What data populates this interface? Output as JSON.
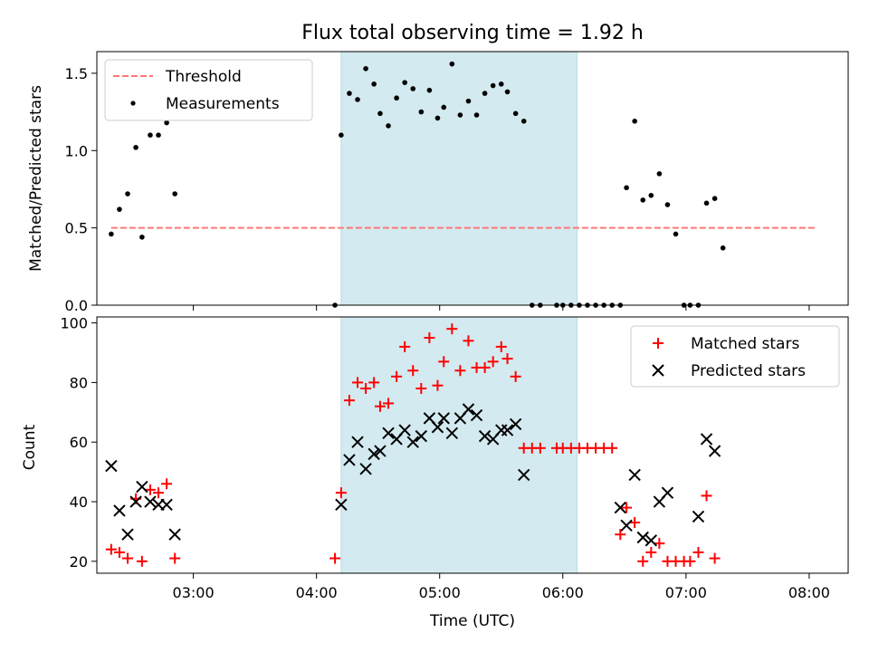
{
  "chart_data": [
    {
      "type": "scatter",
      "title": "Flux total observing time = 1.92 h",
      "ylabel": "Matched/Predicted stars",
      "xlabel": "",
      "xlim": [
        "02:13",
        "08:19"
      ],
      "ylim": [
        0,
        1.64
      ],
      "yticks": [
        0.0,
        0.5,
        1.0,
        1.5
      ],
      "ytick_labels": [
        "0.0",
        "0.5",
        "1.0",
        "1.5"
      ],
      "shaded_interval": [
        "04:12",
        "06:07"
      ],
      "shaded_color": "#d3eaf0",
      "legend": {
        "placement": "top-left",
        "entries": [
          "Threshold",
          "Measurements"
        ]
      },
      "threshold": {
        "name": "Threshold",
        "value": 0.5,
        "x_range": [
          "02:20",
          "08:03"
        ],
        "color": "#ff7777"
      },
      "series": [
        {
          "name": "Measurements",
          "color": "#000000",
          "points": [
            [
              "02:20",
              0.46
            ],
            [
              "02:24",
              0.62
            ],
            [
              "02:28",
              0.72
            ],
            [
              "02:32",
              1.02
            ],
            [
              "02:35",
              0.44
            ],
            [
              "02:39",
              1.1
            ],
            [
              "02:43",
              1.1
            ],
            [
              "02:47",
              1.18
            ],
            [
              "02:51",
              0.72
            ],
            [
              "04:09",
              0.0
            ],
            [
              "04:12",
              1.1
            ],
            [
              "04:16",
              1.37
            ],
            [
              "04:20",
              1.33
            ],
            [
              "04:24",
              1.53
            ],
            [
              "04:28",
              1.43
            ],
            [
              "04:31",
              1.24
            ],
            [
              "04:35",
              1.16
            ],
            [
              "04:39",
              1.34
            ],
            [
              "04:43",
              1.44
            ],
            [
              "04:47",
              1.4
            ],
            [
              "04:51",
              1.25
            ],
            [
              "04:55",
              1.39
            ],
            [
              "04:59",
              1.21
            ],
            [
              "05:02",
              1.28
            ],
            [
              "05:06",
              1.56
            ],
            [
              "05:10",
              1.23
            ],
            [
              "05:14",
              1.32
            ],
            [
              "05:18",
              1.23
            ],
            [
              "05:22",
              1.37
            ],
            [
              "05:26",
              1.42
            ],
            [
              "05:30",
              1.43
            ],
            [
              "05:33",
              1.38
            ],
            [
              "05:37",
              1.24
            ],
            [
              "05:41",
              1.19
            ],
            [
              "05:45",
              0.0
            ],
            [
              "05:49",
              0.0
            ],
            [
              "05:57",
              0.0
            ],
            [
              "06:00",
              0.0
            ],
            [
              "06:04",
              0.0
            ],
            [
              "06:08",
              0.0
            ],
            [
              "06:12",
              0.0
            ],
            [
              "06:16",
              0.0
            ],
            [
              "06:20",
              0.0
            ],
            [
              "06:24",
              0.0
            ],
            [
              "06:28",
              0.0
            ],
            [
              "06:31",
              0.76
            ],
            [
              "06:35",
              1.19
            ],
            [
              "06:39",
              0.68
            ],
            [
              "06:43",
              0.71
            ],
            [
              "06:47",
              0.85
            ],
            [
              "06:51",
              0.65
            ],
            [
              "06:55",
              0.46
            ],
            [
              "06:59",
              0.0
            ],
            [
              "07:02",
              0.0
            ],
            [
              "07:06",
              0.0
            ],
            [
              "07:10",
              0.66
            ],
            [
              "07:14",
              0.69
            ],
            [
              "07:18",
              0.37
            ]
          ]
        }
      ]
    },
    {
      "type": "scatter",
      "title": "",
      "ylabel": "Count",
      "xlabel": "Time (UTC)",
      "xlim": [
        "02:13",
        "08:19"
      ],
      "xticks": [
        "03:00",
        "04:00",
        "05:00",
        "06:00",
        "07:00",
        "08:00"
      ],
      "ylim": [
        16,
        102
      ],
      "yticks": [
        20,
        40,
        60,
        80,
        100
      ],
      "shaded_interval": [
        "04:12",
        "06:07"
      ],
      "shaded_color": "#d3eaf0",
      "legend": {
        "placement": "top-right",
        "entries": [
          "Matched stars",
          "Predicted stars"
        ]
      },
      "series": [
        {
          "name": "Matched stars",
          "marker": "+",
          "color": "#ff0000",
          "points": [
            [
              "02:20",
              24
            ],
            [
              "02:24",
              23
            ],
            [
              "02:28",
              21
            ],
            [
              "02:32",
              41
            ],
            [
              "02:35",
              20
            ],
            [
              "02:39",
              44
            ],
            [
              "02:43",
              43
            ],
            [
              "02:47",
              46
            ],
            [
              "02:51",
              21
            ],
            [
              "04:09",
              21
            ],
            [
              "04:12",
              43
            ],
            [
              "04:16",
              74
            ],
            [
              "04:20",
              80
            ],
            [
              "04:24",
              78
            ],
            [
              "04:28",
              80
            ],
            [
              "04:31",
              72
            ],
            [
              "04:35",
              73
            ],
            [
              "04:39",
              82
            ],
            [
              "04:43",
              92
            ],
            [
              "04:47",
              84
            ],
            [
              "04:51",
              78
            ],
            [
              "04:55",
              95
            ],
            [
              "04:59",
              79
            ],
            [
              "05:02",
              87
            ],
            [
              "05:06",
              98
            ],
            [
              "05:10",
              84
            ],
            [
              "05:14",
              94
            ],
            [
              "05:18",
              85
            ],
            [
              "05:22",
              85
            ],
            [
              "05:26",
              87
            ],
            [
              "05:30",
              92
            ],
            [
              "05:33",
              88
            ],
            [
              "05:37",
              82
            ],
            [
              "05:41",
              58
            ],
            [
              "05:45",
              58
            ],
            [
              "05:49",
              58
            ],
            [
              "05:57",
              58
            ],
            [
              "06:00",
              58
            ],
            [
              "06:04",
              58
            ],
            [
              "06:08",
              58
            ],
            [
              "06:12",
              58
            ],
            [
              "06:16",
              58
            ],
            [
              "06:20",
              58
            ],
            [
              "06:24",
              58
            ],
            [
              "06:28",
              29
            ],
            [
              "06:31",
              38
            ],
            [
              "06:35",
              33
            ],
            [
              "06:39",
              20
            ],
            [
              "06:43",
              23
            ],
            [
              "06:47",
              26
            ],
            [
              "06:51",
              20
            ],
            [
              "06:55",
              20
            ],
            [
              "06:59",
              20
            ],
            [
              "07:02",
              20
            ],
            [
              "07:06",
              23
            ],
            [
              "07:10",
              42
            ],
            [
              "07:14",
              21
            ]
          ]
        },
        {
          "name": "Predicted stars",
          "marker": "x",
          "color": "#000000",
          "points": [
            [
              "02:20",
              52
            ],
            [
              "02:24",
              37
            ],
            [
              "02:28",
              29
            ],
            [
              "02:32",
              40
            ],
            [
              "02:35",
              45
            ],
            [
              "02:39",
              40
            ],
            [
              "02:43",
              39
            ],
            [
              "02:47",
              39
            ],
            [
              "02:51",
              29
            ],
            [
              "04:12",
              39
            ],
            [
              "04:16",
              54
            ],
            [
              "04:20",
              60
            ],
            [
              "04:24",
              51
            ],
            [
              "04:28",
              56
            ],
            [
              "04:31",
              57
            ],
            [
              "04:35",
              63
            ],
            [
              "04:39",
              61
            ],
            [
              "04:43",
              64
            ],
            [
              "04:47",
              60
            ],
            [
              "04:51",
              62
            ],
            [
              "04:55",
              68
            ],
            [
              "04:59",
              65
            ],
            [
              "05:02",
              68
            ],
            [
              "05:06",
              63
            ],
            [
              "05:10",
              68
            ],
            [
              "05:14",
              71
            ],
            [
              "05:18",
              69
            ],
            [
              "05:22",
              62
            ],
            [
              "05:26",
              61
            ],
            [
              "05:30",
              64
            ],
            [
              "05:33",
              64
            ],
            [
              "05:37",
              66
            ],
            [
              "05:41",
              49
            ],
            [
              "06:28",
              38
            ],
            [
              "06:31",
              32
            ],
            [
              "06:35",
              49
            ],
            [
              "06:39",
              28
            ],
            [
              "06:43",
              27
            ],
            [
              "06:47",
              40
            ],
            [
              "06:51",
              43
            ],
            [
              "07:06",
              35
            ],
            [
              "07:10",
              61
            ],
            [
              "07:14",
              57
            ]
          ]
        }
      ]
    }
  ]
}
